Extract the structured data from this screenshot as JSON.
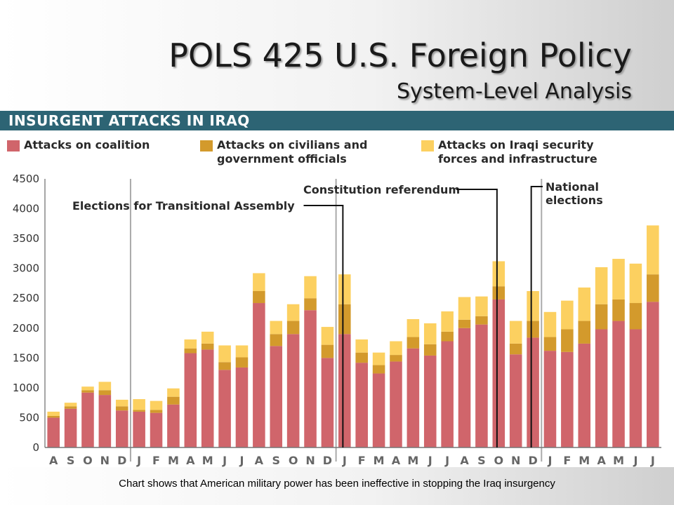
{
  "slide": {
    "title": "POLS 425 U.S. Foreign Policy",
    "subtitle": "System-Level Analysis",
    "caption": "Chart shows that American military power has been ineffective in stopping the Iraq insurgency"
  },
  "chart_data": {
    "type": "bar",
    "stacked": true,
    "title": "INSURGENT ATTACKS IN IRAQ",
    "categories": [
      "A",
      "S",
      "O",
      "N",
      "D",
      "J",
      "F",
      "M",
      "A",
      "M",
      "J",
      "J",
      "A",
      "S",
      "O",
      "N",
      "D",
      "J",
      "F",
      "M",
      "A",
      "M",
      "J",
      "J",
      "A",
      "S",
      "O",
      "N",
      "D",
      "J",
      "F",
      "M",
      "A",
      "M",
      "J",
      "J"
    ],
    "series": [
      {
        "name": "Attacks on coalition",
        "color": "#d0656b",
        "values": [
          500,
          650,
          920,
          880,
          620,
          600,
          580,
          720,
          1580,
          1640,
          1300,
          1340,
          2420,
          1700,
          1900,
          2300,
          1500,
          1900,
          1420,
          1240,
          1440,
          1660,
          1540,
          1780,
          2000,
          2060,
          2480,
          1560,
          1840,
          1620,
          1600,
          1740,
          1980,
          2120,
          1980,
          2440
        ]
      },
      {
        "name": "Attacks on civilians and government officials",
        "color": "#d39a2c",
        "values": [
          30,
          40,
          40,
          80,
          70,
          30,
          50,
          130,
          80,
          100,
          130,
          170,
          200,
          200,
          220,
          200,
          220,
          500,
          170,
          140,
          110,
          190,
          190,
          160,
          140,
          140,
          220,
          180,
          280,
          230,
          380,
          380,
          420,
          360,
          440,
          460
        ]
      },
      {
        "name": "Attacks on Iraqi security forces and infrastructure",
        "color": "#fcd060",
        "values": [
          70,
          60,
          60,
          140,
          110,
          180,
          150,
          140,
          150,
          200,
          280,
          200,
          300,
          220,
          280,
          370,
          300,
          500,
          220,
          210,
          230,
          300,
          350,
          340,
          380,
          330,
          420,
          380,
          500,
          420,
          480,
          560,
          620,
          680,
          660,
          820
        ]
      }
    ],
    "annotations": [
      {
        "label": "Elections for Transitional Assembly",
        "category_index": 17
      },
      {
        "label": "Constitution referendum",
        "category_index": 26
      },
      {
        "label": "National elections",
        "category_index": 28
      }
    ],
    "yticks": [
      0,
      500,
      1000,
      1500,
      2000,
      2500,
      3000,
      3500,
      4000,
      4500
    ],
    "ylim": [
      0,
      4500
    ],
    "year_separators_after": [
      4,
      16,
      28
    ],
    "legend_position": "top",
    "grid": false
  }
}
